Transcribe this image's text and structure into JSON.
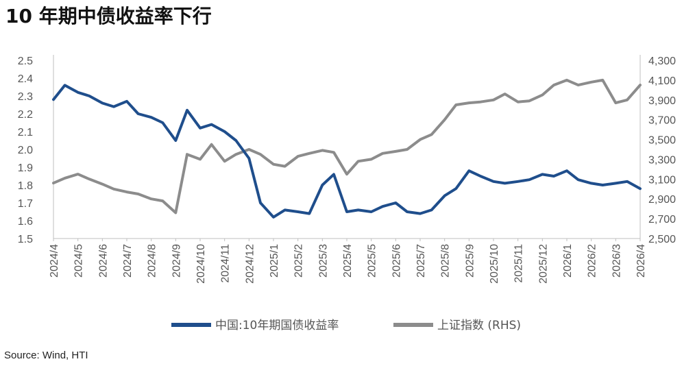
{
  "title": "10 年期中债收益率下行",
  "source": "Source: Wind, HTI",
  "colors": {
    "series1": "#1f4e8c",
    "series2": "#8c8c8c",
    "axis": "#bfbfbf"
  },
  "chart_data": {
    "type": "line",
    "title": "10 年期中债收益率下行",
    "x_ticks": [
      "2024/4",
      "2024/5",
      "2024/6",
      "2024/7",
      "2024/8",
      "2024/9",
      "2024/10",
      "2024/11",
      "2024/12",
      "2025/1",
      "2025/2",
      "2025/3",
      "2025/4",
      "2025/5",
      "2025/6",
      "2025/7",
      "2025/8",
      "2025/9",
      "2025/10",
      "2025/11",
      "2025/12",
      "2026/1",
      "2026/2",
      "2026/3",
      "2026/4"
    ],
    "y_left": {
      "ticks": [
        "2.5",
        "2.4",
        "2.3",
        "2.2",
        "2.1",
        "2.0",
        "1.9",
        "1.8",
        "1.7",
        "1.6",
        "1.5"
      ],
      "range": [
        1.5,
        2.5
      ]
    },
    "y_right": {
      "ticks": [
        "4,300",
        "4,100",
        "3,900",
        "3,700",
        "3,500",
        "3,300",
        "3,100",
        "2,900",
        "2,700",
        "2,500"
      ],
      "range": [
        2500,
        4300
      ]
    },
    "grid": false,
    "legend_position": "bottom",
    "series": [
      {
        "name": "中国:10年期国债收益率",
        "axis": "left",
        "x": [
          "2024/4",
          "2024/4/15",
          "2024/5",
          "2024/5/15",
          "2024/6",
          "2024/6/15",
          "2024/7",
          "2024/7/15",
          "2024/8",
          "2024/8/15",
          "2024/9",
          "2024/9/15",
          "2024/10",
          "2024/10/15",
          "2024/11",
          "2024/11/15",
          "2024/12",
          "2024/12/15",
          "2025/1",
          "2025/1/15",
          "2025/2",
          "2025/2/15",
          "2025/3",
          "2025/3/15",
          "2025/4",
          "2025/4/15",
          "2025/5",
          "2025/5/15",
          "2025/6",
          "2025/6/15",
          "2025/7",
          "2025/7/15",
          "2025/8",
          "2025/8/15",
          "2025/9",
          "2025/9/15",
          "2025/10",
          "2025/10/15",
          "2025/11",
          "2025/11/15",
          "2025/12",
          "2025/12/15",
          "2026/1",
          "2026/1/15",
          "2026/2",
          "2026/2/15",
          "2026/3",
          "2026/3/15",
          "2026/4"
        ],
        "values": [
          2.28,
          2.36,
          2.32,
          2.3,
          2.26,
          2.24,
          2.27,
          2.2,
          2.18,
          2.15,
          2.05,
          2.22,
          2.12,
          2.14,
          2.1,
          2.05,
          1.95,
          1.7,
          1.62,
          1.66,
          1.65,
          1.64,
          1.8,
          1.86,
          1.65,
          1.66,
          1.65,
          1.68,
          1.7,
          1.65,
          1.64,
          1.66,
          1.74,
          1.78,
          1.88,
          1.85,
          1.82,
          1.81,
          1.82,
          1.83,
          1.86,
          1.85,
          1.88,
          1.83,
          1.81,
          1.8,
          1.81,
          1.82,
          1.78
        ]
      },
      {
        "name": "上证指数 (RHS)",
        "axis": "right",
        "x": [
          "2024/4",
          "2024/4/15",
          "2024/5",
          "2024/5/15",
          "2024/6",
          "2024/6/15",
          "2024/7",
          "2024/7/15",
          "2024/8",
          "2024/8/15",
          "2024/9",
          "2024/9/15",
          "2024/10",
          "2024/10/15",
          "2024/11",
          "2024/11/15",
          "2024/12",
          "2024/12/15",
          "2025/1",
          "2025/1/15",
          "2025/2",
          "2025/2/15",
          "2025/3",
          "2025/3/15",
          "2025/4",
          "2025/4/15",
          "2025/5",
          "2025/5/15",
          "2025/6",
          "2025/6/15",
          "2025/7",
          "2025/7/15",
          "2025/8",
          "2025/8/15",
          "2025/9",
          "2025/9/15",
          "2025/10",
          "2025/10/15",
          "2025/11",
          "2025/11/15",
          "2025/12",
          "2025/12/15",
          "2026/1",
          "2026/1/15",
          "2026/2",
          "2026/2/15",
          "2026/3",
          "2026/3/15",
          "2026/4"
        ],
        "values": [
          3060,
          3110,
          3150,
          3100,
          3050,
          3000,
          2970,
          2950,
          2900,
          2880,
          2760,
          3350,
          3300,
          3450,
          3280,
          3350,
          3400,
          3350,
          3250,
          3230,
          3330,
          3360,
          3390,
          3370,
          3150,
          3280,
          3300,
          3360,
          3380,
          3400,
          3500,
          3550,
          3700,
          3850,
          3870,
          3880,
          3900,
          3960,
          3880,
          3890,
          3950,
          4050,
          4100,
          4050,
          4080,
          4100,
          3870,
          3900,
          4050
        ]
      }
    ]
  }
}
